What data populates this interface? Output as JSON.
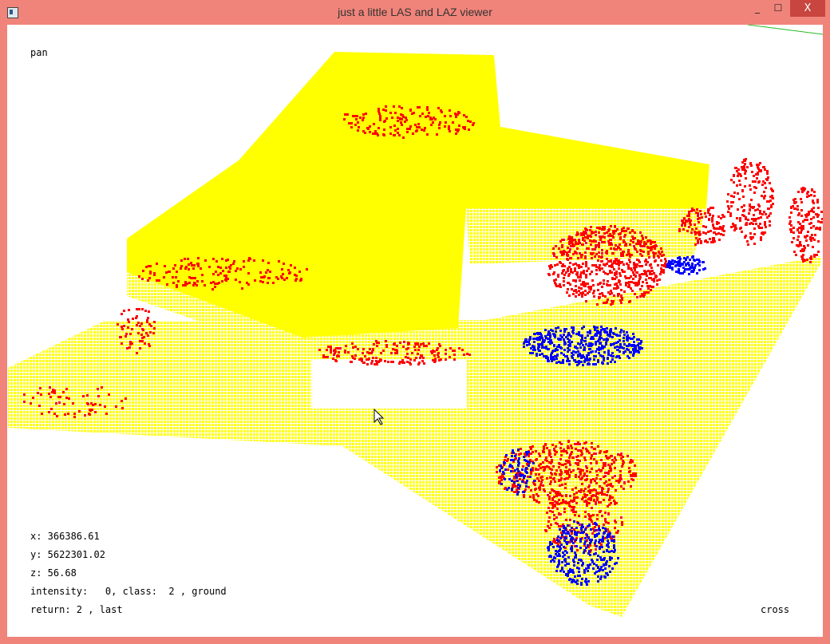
{
  "window": {
    "title": "just a little LAS and LAZ viewer",
    "minimize_label": "_",
    "maximize_label": "☐",
    "close_label": "X"
  },
  "viewer": {
    "mode": "pan",
    "cursor_mode": "cross",
    "readout": {
      "x": "x: 366386.61",
      "y": "y: 5622301.02",
      "z": "z: 56.68",
      "intensity_class": "intensity:   0, class:  2 , ground",
      "return": "return: 2 , last"
    },
    "colors": {
      "ground": "#ffff00",
      "vegetation": "#ff0000",
      "low_points": "#0000ff",
      "axis": "#00cc00",
      "frame": "#f0847a"
    }
  }
}
